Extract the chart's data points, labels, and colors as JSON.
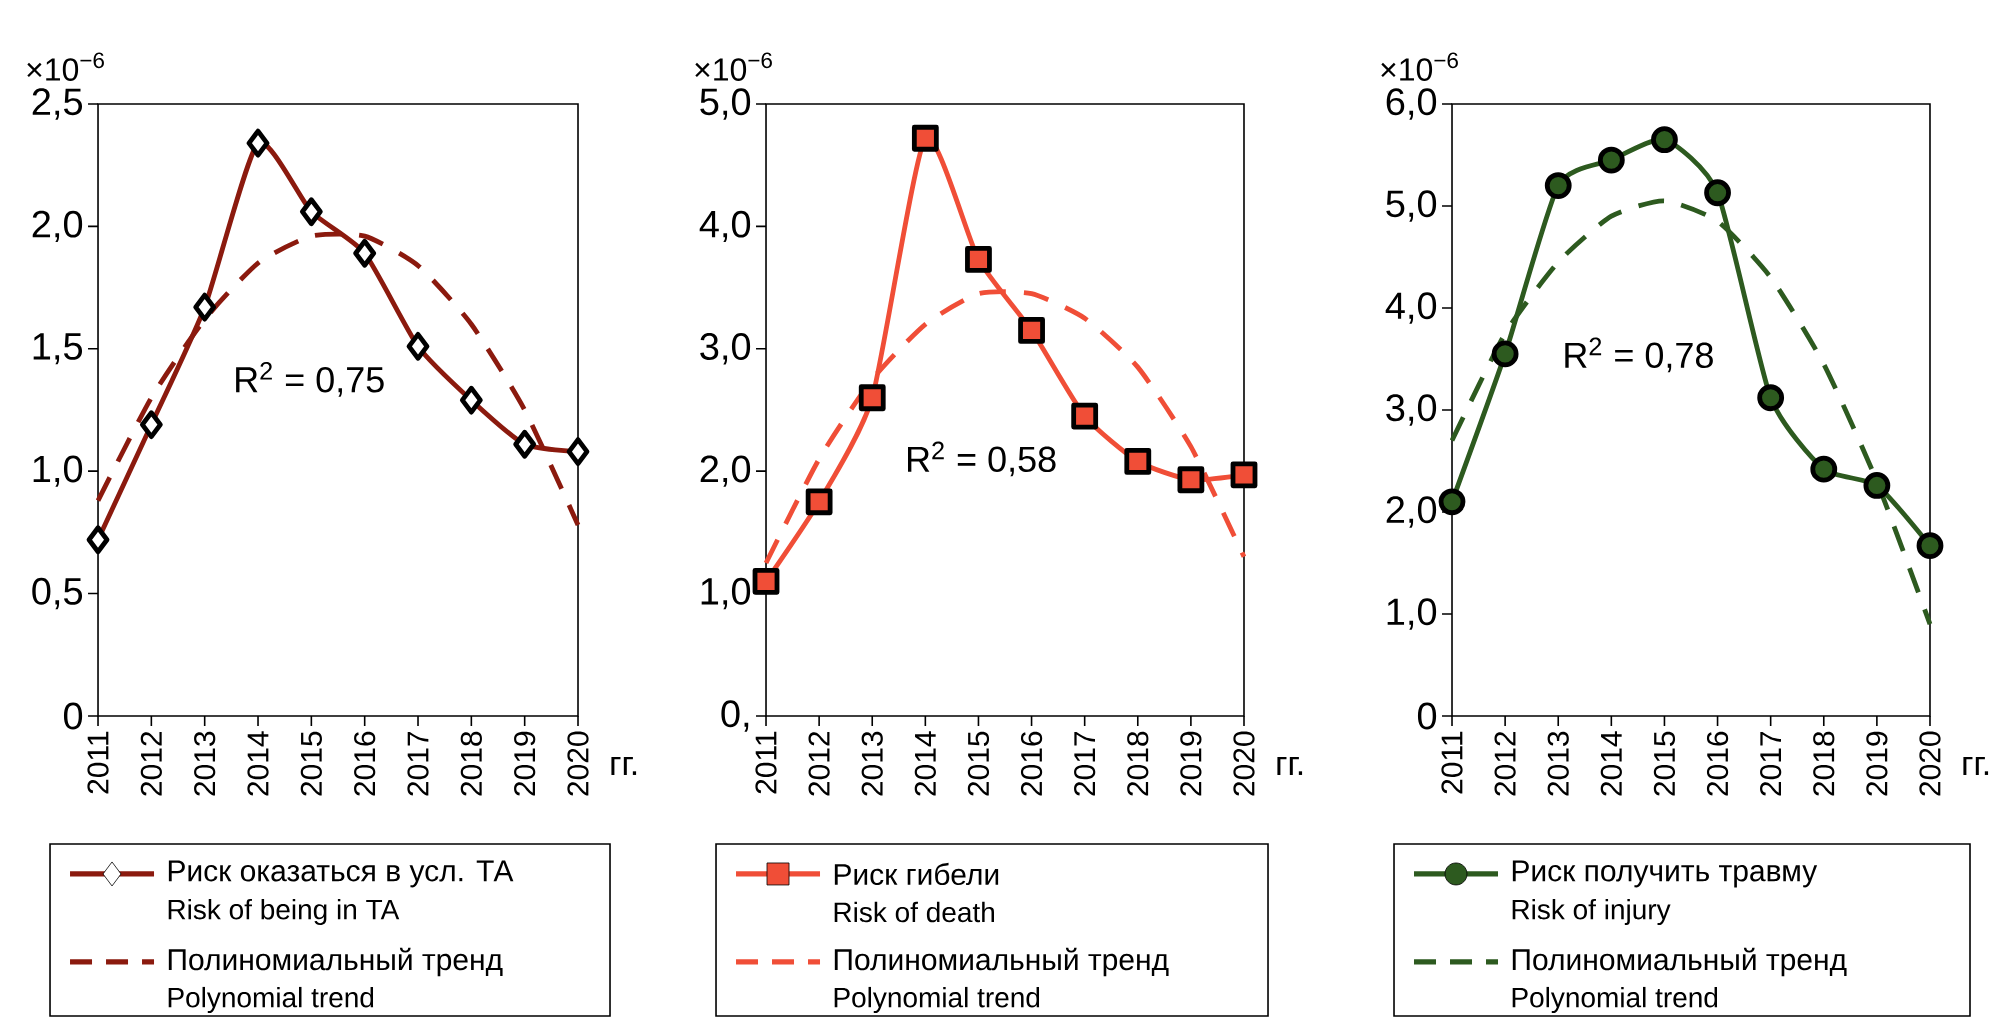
{
  "chart_data": [
    {
      "type": "line",
      "categories": [
        "2011",
        "2012",
        "2013",
        "2014",
        "2015",
        "2016",
        "2017",
        "2018",
        "2019",
        "2020"
      ],
      "xlabel": "гг.",
      "ylabel": "×10$^{−6}$",
      "ylim": [
        0,
        2.5
      ],
      "yticks": [
        0,
        {
          "value": 0.5,
          "label": "0,5"
        },
        {
          "value": 1.0,
          "label": "1,0"
        },
        {
          "value": 1.5,
          "label": "1,5"
        },
        {
          "value": 2.0,
          "label": "2,0"
        },
        {
          "value": 2.5,
          "label": "2,5"
        }
      ],
      "legend": "bottom",
      "series": [
        {
          "name": "Риск оказаться в усл. ТА",
          "color": "#8b1a0e",
          "marker": "diamond",
          "line_style": "solid",
          "values": [
            0.72,
            1.19,
            1.67,
            2.34,
            2.06,
            1.89,
            1.51,
            1.29,
            1.11,
            1.08
          ]
        },
        {
          "name": "Полиномиальный тренд",
          "color": "#8b1a0e",
          "marker": "none",
          "line_style": "dashed",
          "values": [
            0.88,
            1.3,
            1.62,
            1.85,
            1.96,
            1.96,
            1.84,
            1.6,
            1.25,
            0.78
          ]
        }
      ],
      "annotations": [
        "R$^{2}$ = 0,75",
        "Risk of being in TA",
        "Polynomial trend"
      ]
    },
    {
      "type": "line",
      "categories": [
        "2011",
        "2012",
        "2013",
        "2014",
        "2015",
        "2016",
        "2017",
        "2018",
        "2019",
        "2020"
      ],
      "xlabel": "гг.",
      "ylabel": "×10$^{−6}$",
      "ylim": [
        0,
        5.0
      ],
      "yticks": [
        {
          "value": 0,
          "label": "0,"
        },
        {
          "value": 1.0,
          "label": "1,0"
        },
        {
          "value": 2.0,
          "label": "2,0"
        },
        {
          "value": 3.0,
          "label": "3,0"
        },
        {
          "value": 4.0,
          "label": "4,0"
        },
        {
          "value": 5.0,
          "label": "5,0"
        }
      ],
      "legend": "bottom",
      "series": [
        {
          "name": "Риск гибели",
          "color": "#f04e37",
          "marker": "square",
          "line_style": "solid",
          "values": [
            1.1,
            1.75,
            2.6,
            4.72,
            3.73,
            3.15,
            2.45,
            2.08,
            1.93,
            1.97
          ]
        },
        {
          "name": "Полиномиальный тренд",
          "color": "#f04e37",
          "marker": "none",
          "line_style": "dashed",
          "values": [
            1.25,
            2.1,
            2.75,
            3.2,
            3.45,
            3.45,
            3.25,
            2.85,
            2.2,
            1.3
          ]
        }
      ],
      "annotations": [
        "R$^{2}$ = 0,58",
        "Risk of death",
        "Polynomial trend"
      ]
    },
    {
      "type": "line",
      "categories": [
        "2011",
        "2012",
        "2013",
        "2014",
        "2015",
        "2016",
        "2017",
        "2018",
        "2019",
        "2020"
      ],
      "xlabel": "гг.",
      "ylabel": "×10$^{−6}$",
      "ylim": [
        0,
        6.0
      ],
      "yticks": [
        0,
        {
          "value": 1.0,
          "label": "1,0"
        },
        {
          "value": 2.0,
          "label": "2,0"
        },
        {
          "value": 3.0,
          "label": "3,0"
        },
        {
          "value": 4.0,
          "label": "4,0"
        },
        {
          "value": 5.0,
          "label": "5,0"
        },
        {
          "value": 6.0,
          "label": "6,0"
        }
      ],
      "legend": "bottom",
      "series": [
        {
          "name": "Риск получить травму",
          "color": "#2d5a1f",
          "marker": "circle",
          "line_style": "solid",
          "values": [
            2.1,
            3.55,
            5.2,
            5.45,
            5.65,
            5.13,
            3.12,
            2.42,
            2.26,
            1.67
          ]
        },
        {
          "name": "Полиномиальный тренд",
          "color": "#2d5a1f",
          "marker": "none",
          "line_style": "dashed",
          "values": [
            2.7,
            3.75,
            4.45,
            4.9,
            5.05,
            4.85,
            4.3,
            3.45,
            2.3,
            0.9
          ]
        }
      ],
      "annotations": [
        "R$^{2}$ = 0,78",
        "Risk of injury",
        "Polynomial trend"
      ]
    }
  ]
}
